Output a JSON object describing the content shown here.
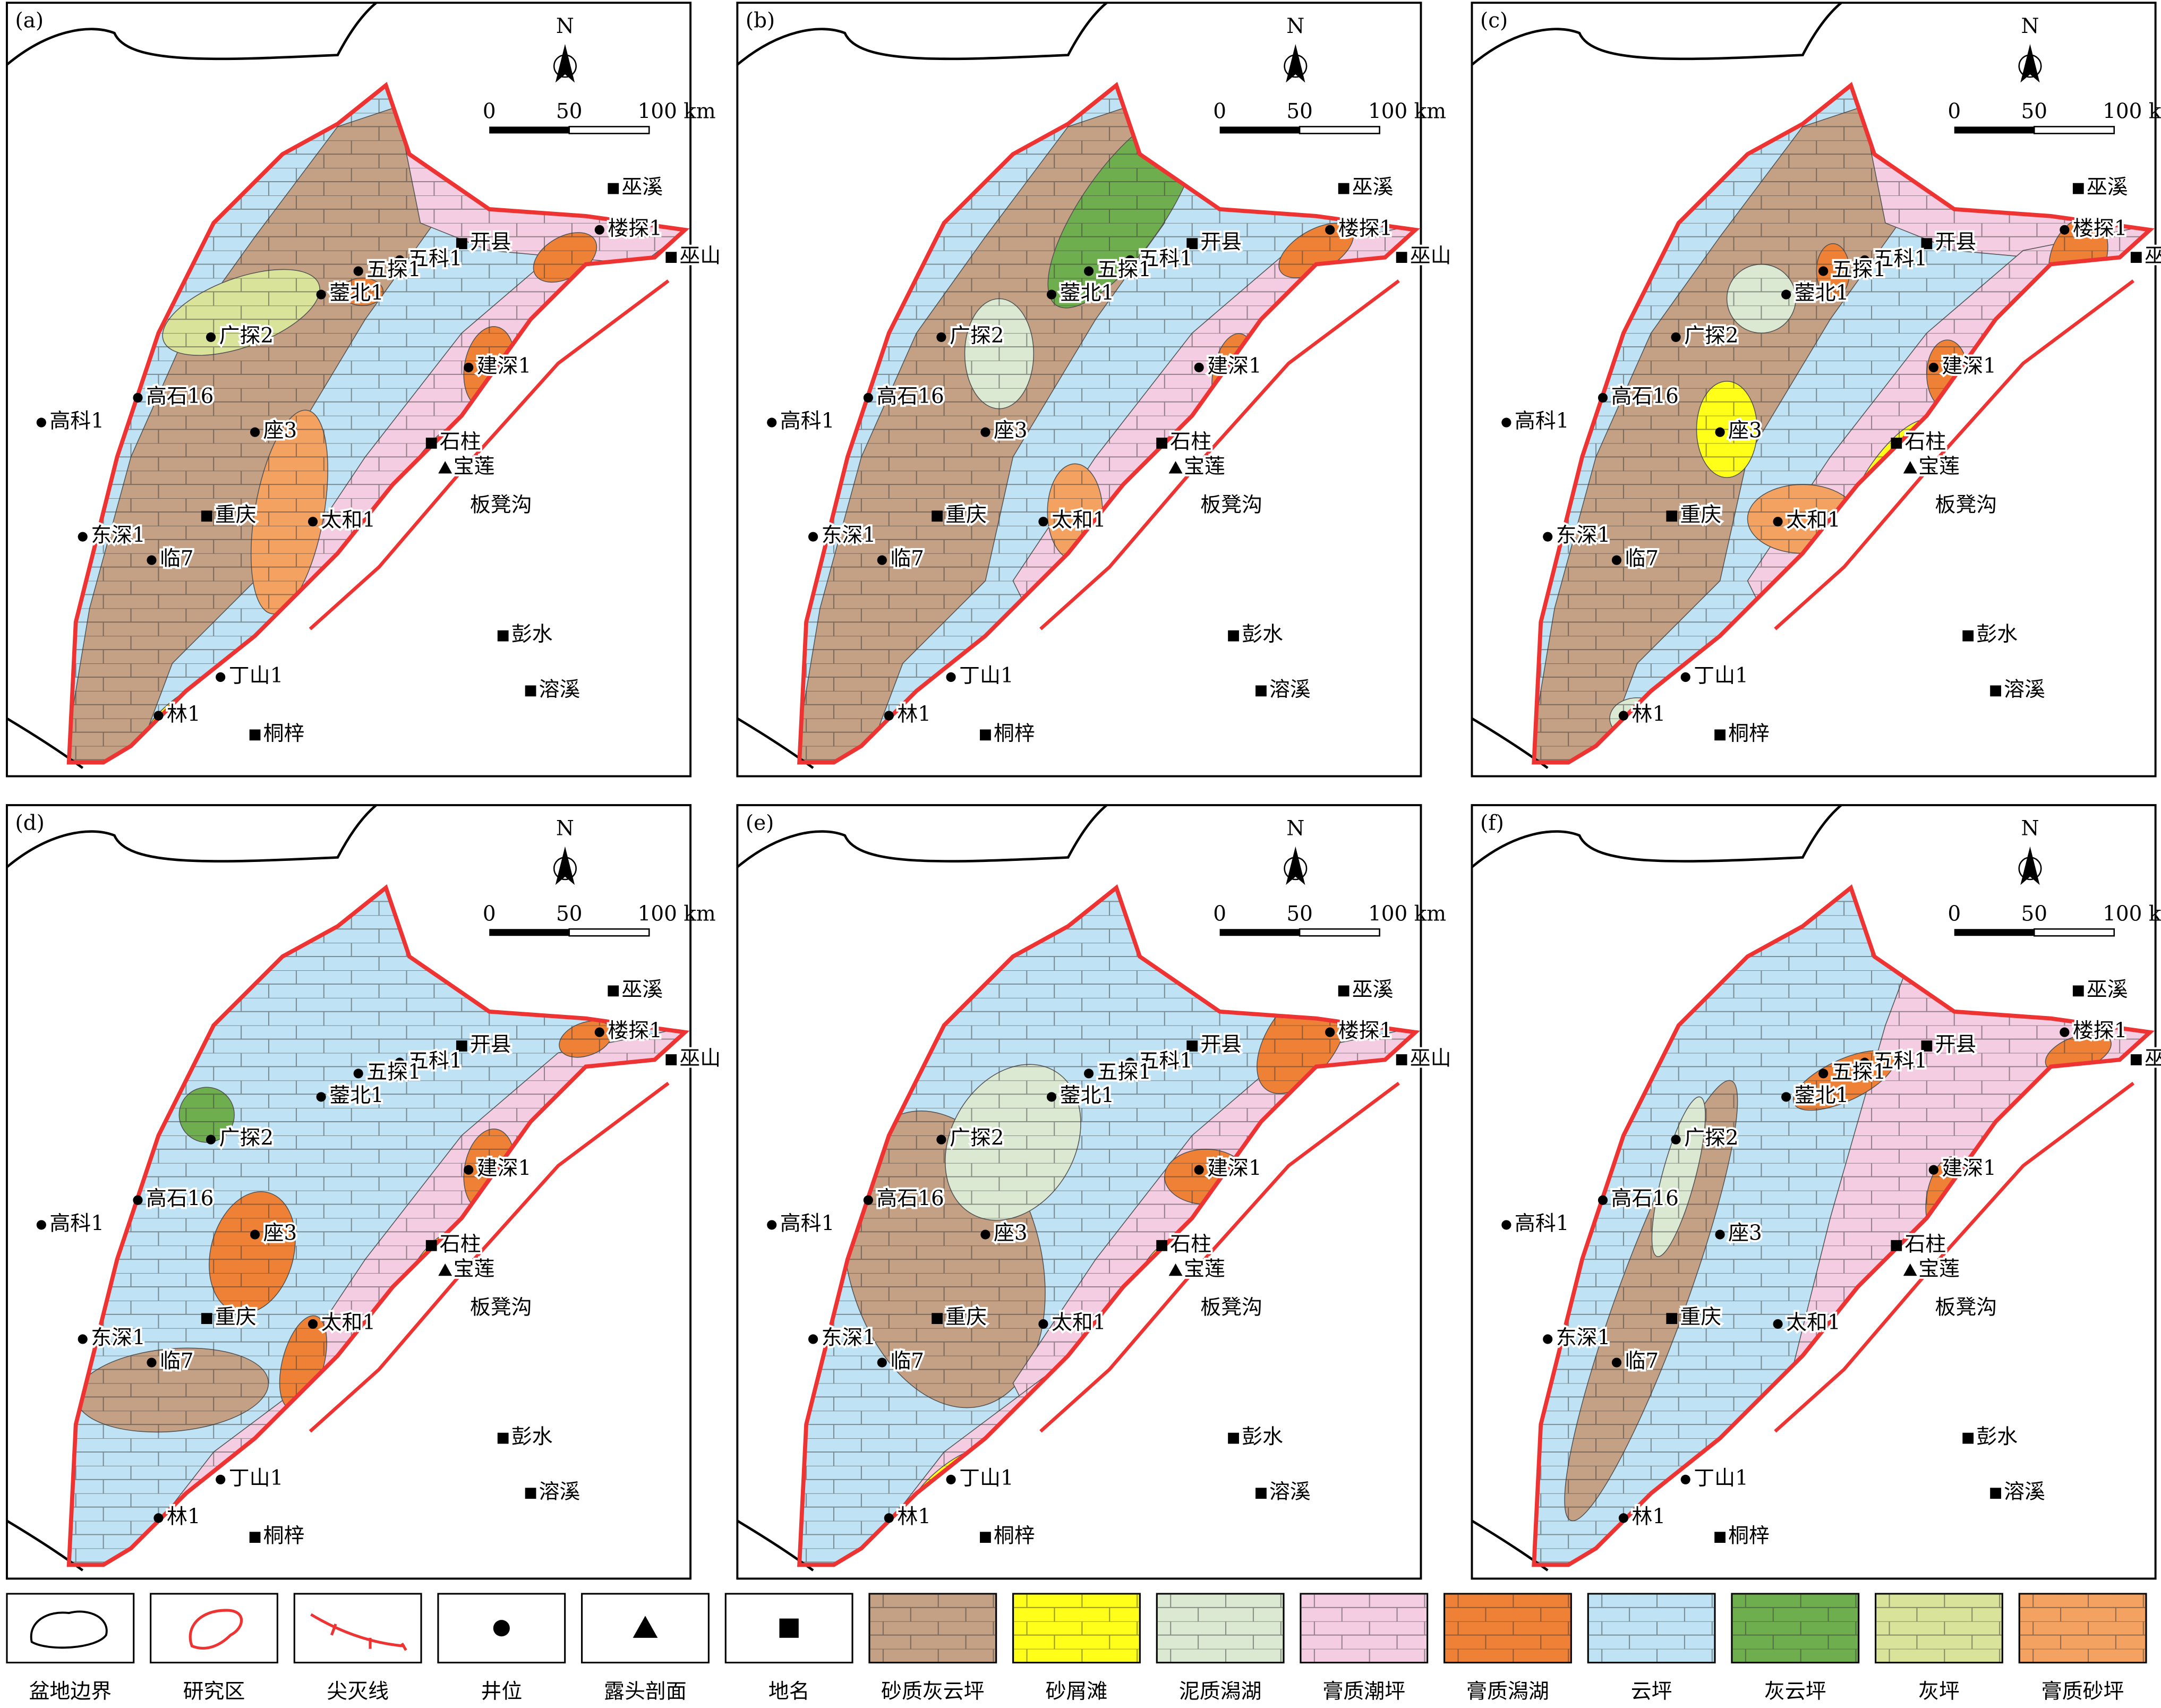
{
  "panels": [
    {
      "label": "(a)"
    },
    {
      "label": "(b)"
    },
    {
      "label": "(c)"
    },
    {
      "label": "(d)"
    },
    {
      "label": "(e)"
    },
    {
      "label": "(f)"
    }
  ],
  "scale_bar": {
    "north": "N",
    "ticks": [
      "0",
      "50",
      "100 km"
    ]
  },
  "places": [
    {
      "name": "巫溪",
      "kind": "town"
    },
    {
      "name": "楼探1",
      "kind": "well"
    },
    {
      "name": "巫山",
      "kind": "town"
    },
    {
      "name": "开县",
      "kind": "town"
    },
    {
      "name": "五科1",
      "kind": "well"
    },
    {
      "name": "五探1",
      "kind": "well"
    },
    {
      "name": "蓥北1",
      "kind": "well"
    },
    {
      "name": "广探2",
      "kind": "well"
    },
    {
      "name": "高石16",
      "kind": "well"
    },
    {
      "name": "高科1",
      "kind": "well"
    },
    {
      "name": "座3",
      "kind": "well"
    },
    {
      "name": "建深1",
      "kind": "well"
    },
    {
      "name": "石柱",
      "kind": "town"
    },
    {
      "name": "宝莲",
      "kind": "outcrop"
    },
    {
      "name": "板凳沟",
      "kind": "label"
    },
    {
      "name": "太和1",
      "kind": "well"
    },
    {
      "name": "重庆",
      "kind": "town"
    },
    {
      "name": "东深1",
      "kind": "well"
    },
    {
      "name": "临7",
      "kind": "well"
    },
    {
      "name": "彭水",
      "kind": "town"
    },
    {
      "name": "溶溪",
      "kind": "town"
    },
    {
      "name": "丁山1",
      "kind": "well"
    },
    {
      "name": "林1",
      "kind": "well"
    },
    {
      "name": "桐梓",
      "kind": "town"
    }
  ],
  "legend": [
    {
      "label": "盆地边界",
      "kind": "basin"
    },
    {
      "label": "研究区",
      "kind": "study"
    },
    {
      "label": "尖灭线",
      "kind": "pinch"
    },
    {
      "label": "井位",
      "kind": "well"
    },
    {
      "label": "露头剖面",
      "kind": "outcrop"
    },
    {
      "label": "地名",
      "kind": "town"
    },
    {
      "label": "砂质灰云坪",
      "color": "#c4a084"
    },
    {
      "label": "砂屑滩",
      "color": "#ffff1a"
    },
    {
      "label": "泥质潟湖",
      "color": "#dbe9d2"
    },
    {
      "label": "膏质潮坪",
      "color": "#f5cde2"
    },
    {
      "label": "膏质潟湖",
      "color": "#ee8136"
    },
    {
      "label": "云坪",
      "color": "#bfe3f4"
    },
    {
      "label": "灰云坪",
      "color": "#6fae4e"
    },
    {
      "label": "灰坪",
      "color": "#d9e39a"
    },
    {
      "label": "膏质砂坪",
      "color": "#f4a262"
    }
  ]
}
